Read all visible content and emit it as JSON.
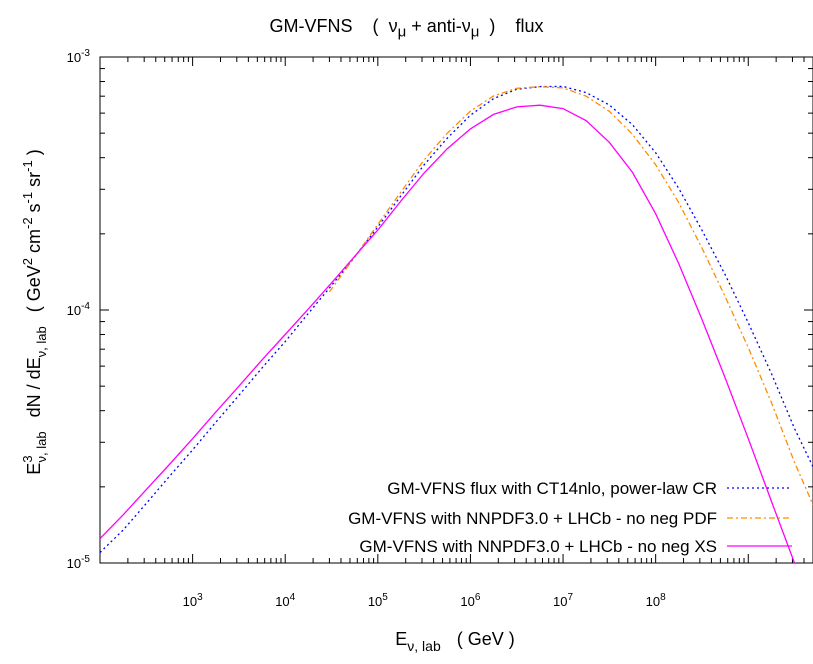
{
  "chart_data": {
    "type": "line",
    "title": {
      "prefix": "GM-VFNS",
      "open": "(",
      "nu": "ν",
      "mu": "μ",
      "plus": " + anti-",
      "close": ")",
      "tail": "flux"
    },
    "xlabel": {
      "E": "E",
      "sub": "ν, lab",
      "unit": "( GeV )"
    },
    "ylabel": {
      "E": "E",
      "sup3": "3",
      "sub": "ν, lab",
      "mid": "dN / dE",
      "unit_open": "( GeV",
      "sup2": "2",
      "cm": " cm",
      "supm2": "-2",
      "s": " s",
      "supm1a": "-1",
      "sr": " sr",
      "supm1b": "-1",
      "unit_close": " )"
    },
    "x_scale": "log",
    "y_scale": "log",
    "xlim": [
      100,
      5000000000
    ],
    "ylim": [
      1e-05,
      0.001
    ],
    "x_ticks": [
      {
        "value": 1000,
        "base": "10",
        "exp": "3"
      },
      {
        "value": 10000,
        "base": "10",
        "exp": "4"
      },
      {
        "value": 100000,
        "base": "10",
        "exp": "5"
      },
      {
        "value": 1000000,
        "base": "10",
        "exp": "6"
      },
      {
        "value": 10000000,
        "base": "10",
        "exp": "7"
      },
      {
        "value": 100000000,
        "base": "10",
        "exp": "8"
      }
    ],
    "y_ticks": [
      {
        "value": 1e-05,
        "base": "10",
        "exp": "-5"
      },
      {
        "value": 0.0001,
        "base": "10",
        "exp": "-4"
      },
      {
        "value": 0.001,
        "base": "10",
        "exp": "-3"
      }
    ],
    "grid": false,
    "legend_position": "bottom-right",
    "series": [
      {
        "name": "GM-VFNS flux with CT14nlo, power-law CR",
        "color": "#0000ff",
        "dash": "dotted",
        "x": [
          100,
          178,
          316,
          562,
          1000,
          1780,
          3160,
          5620,
          10000,
          17800,
          31600,
          56200,
          100000,
          178000,
          316000,
          562000,
          1000000,
          1780000,
          3160000,
          5620000,
          10000000,
          17800000,
          31600000,
          56200000,
          100000000,
          178000000,
          316000000,
          562000000,
          1000000000,
          1780000000,
          3160000000,
          5000000000
        ],
        "y": [
          1.1e-05,
          1.35e-05,
          1.72e-05,
          2.2e-05,
          2.8e-05,
          3.6e-05,
          4.6e-05,
          5.9e-05,
          7.5e-05,
          9.7e-05,
          0.000125,
          0.000162,
          0.000213,
          0.000283,
          0.000375,
          0.000478,
          0.000589,
          0.000685,
          0.000745,
          0.000764,
          0.000765,
          0.000723,
          0.000646,
          0.00054,
          0.000418,
          0.000302,
          0.000207,
          0.000138,
          8.9e-05,
          5.6e-05,
          3.4e-05,
          2.4e-05
        ]
      },
      {
        "name": "GM-VFNS with NNPDF3.0 + LHCb - no neg PDF",
        "color": "#ff8c00",
        "dash": "dashdot",
        "x": [
          30000,
          56200,
          100000,
          178000,
          316000,
          562000,
          1000000,
          1780000,
          3160000,
          5620000,
          10000000,
          17800000,
          31600000,
          56200000,
          100000000,
          178000000,
          316000000,
          562000000,
          1000000000,
          1780000000,
          3160000000,
          5000000000
        ],
        "y": [
          0.000118,
          0.000162,
          0.000218,
          0.000293,
          0.000392,
          0.0005,
          0.000611,
          0.000702,
          0.000752,
          0.000763,
          0.000755,
          0.0007,
          0.00061,
          0.000495,
          0.000375,
          0.000265,
          0.000176,
          0.000113,
          7.1e-05,
          4.3e-05,
          2.5e-05,
          1.7e-05
        ]
      },
      {
        "name": "GM-VFNS with NNPDF3.0 + LHCb - no neg XS",
        "color": "#ff00ff",
        "dash": "solid",
        "x": [
          100,
          178,
          316,
          562,
          1000,
          1780,
          3160,
          5620,
          10000,
          17800,
          31600,
          56200,
          100000,
          178000,
          316000,
          562000,
          1000000,
          1780000,
          3160000,
          5620000,
          10000000,
          17800000,
          31600000,
          56200000,
          100000000,
          178000000,
          316000000,
          562000000,
          1000000000,
          1780000000,
          3160000000,
          5000000000
        ],
        "y": [
          1.25e-05,
          1.55e-05,
          1.95e-05,
          2.45e-05,
          3.1e-05,
          3.95e-05,
          5e-05,
          6.35e-05,
          8e-05,
          0.000101,
          0.000128,
          0.000163,
          0.000207,
          0.00027,
          0.000348,
          0.000434,
          0.00052,
          0.000593,
          0.000635,
          0.000645,
          0.000625,
          0.00056,
          0.00046,
          0.00035,
          0.00024,
          0.000152,
          9.2e-05,
          5.4e-05,
          3.1e-05,
          1.75e-05,
          1e-05,
          7e-06
        ]
      }
    ]
  }
}
